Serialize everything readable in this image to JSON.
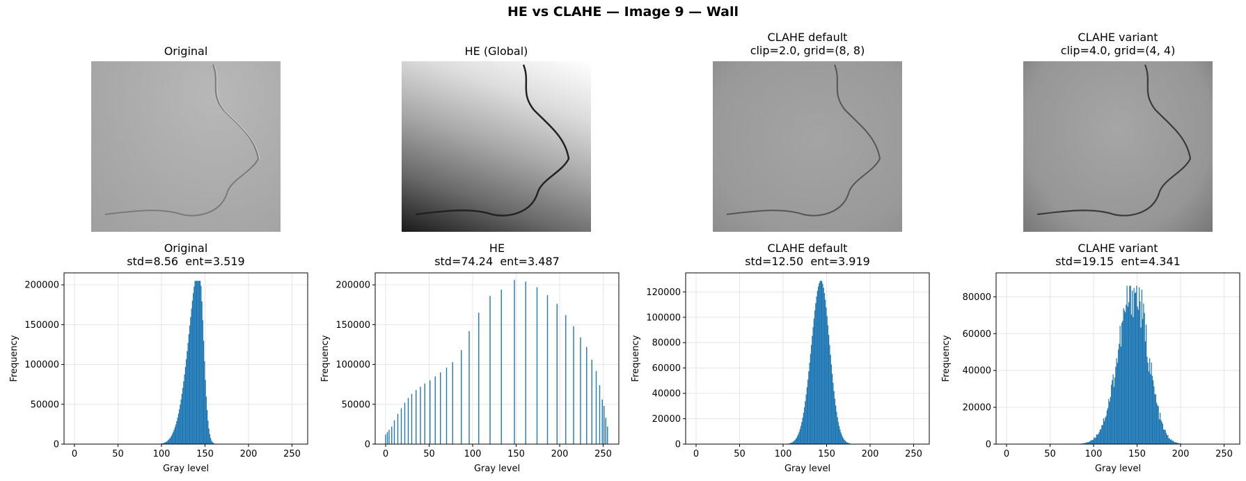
{
  "suptitle": "HE vs CLAHE — Image 9 — Wall",
  "images": [
    {
      "title": "Original"
    },
    {
      "title": "HE (Global)"
    },
    {
      "title": "CLAHE default\nclip=2.0, grid=(8, 8)"
    },
    {
      "title": "CLAHE variant\nclip=4.0, grid=(4, 4)"
    }
  ],
  "chart_data": [
    {
      "type": "bar",
      "title": "Original\nstd=8.56  ent=3.519",
      "xlabel": "Gray level",
      "ylabel": "Frequency",
      "xlim": [
        -12,
        268
      ],
      "ylim": [
        0,
        215000
      ],
      "xticks": [
        0,
        50,
        100,
        150,
        200,
        250
      ],
      "yticks": [
        0,
        50000,
        100000,
        150000,
        200000
      ],
      "grid": true,
      "color": "#1f77b4",
      "shape": "skewed",
      "mean": 143,
      "peak": 205000,
      "sigmaLeft": 10,
      "sigmaRight": 5,
      "shoulder": {
        "center": 128,
        "height": 40000,
        "width": 10
      }
    },
    {
      "type": "bar",
      "title": "HE\nstd=74.24  ent=3.487",
      "xlabel": "Gray level",
      "ylabel": "Frequency",
      "xlim": [
        -12,
        268
      ],
      "ylim": [
        0,
        215000
      ],
      "xticks": [
        0,
        50,
        100,
        150,
        200,
        250
      ],
      "yticks": [
        0,
        50000,
        100000,
        150000,
        200000
      ],
      "grid": true,
      "color": "#1f77b4",
      "shape": "spikes",
      "spikes": [
        [
          0,
          12000
        ],
        [
          2,
          15000
        ],
        [
          4,
          18000
        ],
        [
          7,
          22000
        ],
        [
          10,
          30000
        ],
        [
          14,
          38000
        ],
        [
          18,
          45000
        ],
        [
          22,
          52000
        ],
        [
          26,
          58000
        ],
        [
          30,
          63000
        ],
        [
          35,
          68000
        ],
        [
          40,
          72000
        ],
        [
          45,
          76000
        ],
        [
          51,
          80000
        ],
        [
          57,
          85000
        ],
        [
          63,
          90000
        ],
        [
          70,
          96000
        ],
        [
          77,
          103000
        ],
        [
          87,
          118000
        ],
        [
          96,
          142000
        ],
        [
          107,
          165000
        ],
        [
          120,
          186000
        ],
        [
          133,
          194000
        ],
        [
          148,
          206000
        ],
        [
          161,
          204000
        ],
        [
          174,
          197000
        ],
        [
          186,
          187000
        ],
        [
          197,
          176000
        ],
        [
          207,
          162000
        ],
        [
          216,
          148000
        ],
        [
          224,
          134000
        ],
        [
          231,
          122000
        ],
        [
          237,
          106000
        ],
        [
          242,
          92000
        ],
        [
          246,
          74000
        ],
        [
          249,
          56000
        ],
        [
          251,
          48000
        ],
        [
          253,
          33000
        ],
        [
          255,
          22000
        ]
      ]
    },
    {
      "type": "bar",
      "title": "CLAHE default\nstd=12.50  ent=3.919",
      "xlabel": "Gray level",
      "ylabel": "Frequency",
      "xlim": [
        -12,
        268
      ],
      "ylim": [
        0,
        135000
      ],
      "xticks": [
        0,
        50,
        100,
        150,
        200,
        250
      ],
      "yticks": [
        0,
        20000,
        40000,
        60000,
        80000,
        100000,
        120000
      ],
      "grid": true,
      "color": "#1f77b4",
      "shape": "gauss",
      "mean": 143,
      "peak": 129000,
      "sigmaLeft": 11,
      "sigmaRight": 10
    },
    {
      "type": "bar",
      "title": "CLAHE variant\nstd=19.15  ent=4.341",
      "xlabel": "Gray level",
      "ylabel": "Frequency",
      "xlim": [
        -12,
        268
      ],
      "ylim": [
        0,
        93000
      ],
      "xticks": [
        0,
        50,
        100,
        150,
        200,
        250
      ],
      "yticks": [
        0,
        20000,
        40000,
        60000,
        80000
      ],
      "grid": true,
      "color": "#1f77b4",
      "shape": "gauss",
      "mean": 146,
      "peak": 86000,
      "sigmaLeft": 18,
      "sigmaRight": 16,
      "jitter": true
    }
  ]
}
